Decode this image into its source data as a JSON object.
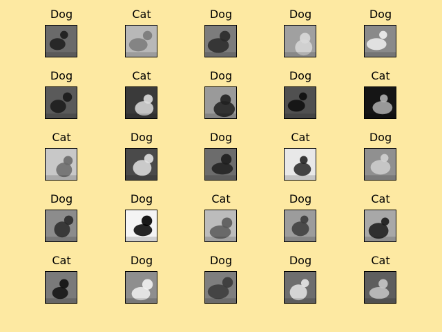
{
  "grid": {
    "rows": [
      [
        {
          "label": "Dog",
          "tone": "#6a6a6a",
          "fg": "#1c1c1c"
        },
        {
          "label": "Cat",
          "tone": "#b8b8b8",
          "fg": "#7a7a7a"
        },
        {
          "label": "Dog",
          "tone": "#7c7c7c",
          "fg": "#2a2a2a"
        },
        {
          "label": "Dog",
          "tone": "#a0a0a0",
          "fg": "#d8d8d8"
        },
        {
          "label": "Dog",
          "tone": "#8a8a8a",
          "fg": "#f0f0f0"
        }
      ],
      [
        {
          "label": "Dog",
          "tone": "#5a5a5a",
          "fg": "#1a1a1a"
        },
        {
          "label": "Cat",
          "tone": "#3a3a3a",
          "fg": "#dcdcdc"
        },
        {
          "label": "Dog",
          "tone": "#9a9a9a",
          "fg": "#202020"
        },
        {
          "label": "Dog",
          "tone": "#505050",
          "fg": "#0c0c0c"
        },
        {
          "label": "Cat",
          "tone": "#151515",
          "fg": "#b0b0b0"
        }
      ],
      [
        {
          "label": "Cat",
          "tone": "#c8c8c8",
          "fg": "#6a6a6a"
        },
        {
          "label": "Dog",
          "tone": "#4a4a4a",
          "fg": "#e0e0e0"
        },
        {
          "label": "Dog",
          "tone": "#6c6c6c",
          "fg": "#1e1e1e"
        },
        {
          "label": "Cat",
          "tone": "#e8e8e8",
          "fg": "#242424"
        },
        {
          "label": "Dog",
          "tone": "#909090",
          "fg": "#d0d0d0"
        }
      ],
      [
        {
          "label": "Dog",
          "tone": "#8c8c8c",
          "fg": "#2a2a2a"
        },
        {
          "label": "Dog",
          "tone": "#f4f4f4",
          "fg": "#000000"
        },
        {
          "label": "Cat",
          "tone": "#bcbcbc",
          "fg": "#5a5a5a"
        },
        {
          "label": "Dog",
          "tone": "#9c9c9c",
          "fg": "#3c3c3c"
        },
        {
          "label": "Cat",
          "tone": "#a8a8a8",
          "fg": "#1a1a1a"
        }
      ],
      [
        {
          "label": "Cat",
          "tone": "#7a7a7a",
          "fg": "#101010"
        },
        {
          "label": "Dog",
          "tone": "#8e8e8e",
          "fg": "#f2f2f2"
        },
        {
          "label": "Dog",
          "tone": "#7e7e7e",
          "fg": "#3a3a3a"
        },
        {
          "label": "Dog",
          "tone": "#6e6e6e",
          "fg": "#e6e6e6"
        },
        {
          "label": "Cat",
          "tone": "#5e5e5e",
          "fg": "#c6c6c6"
        }
      ]
    ]
  }
}
